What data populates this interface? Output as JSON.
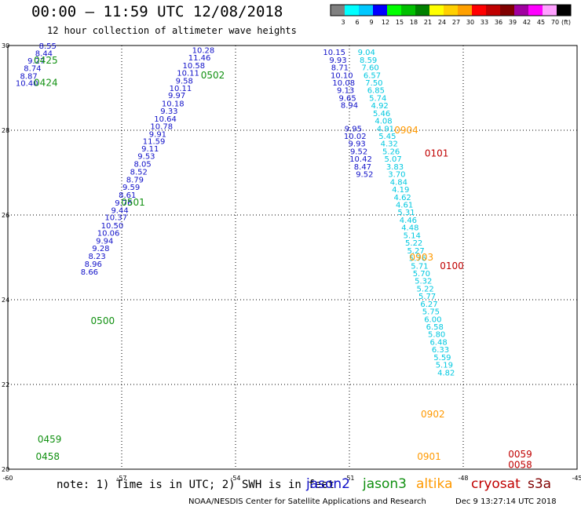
{
  "header": {
    "title": "00:00 — 11:59 UTC 12/08/2018",
    "subtitle": "12 hour collection of altimeter wave heights"
  },
  "colorbar": {
    "unit": "(ft)",
    "bins": [
      {
        "label": "3",
        "color": "#808080"
      },
      {
        "label": "6",
        "color": "#00ffff"
      },
      {
        "label": "9",
        "color": "#00c8ff"
      },
      {
        "label": "12",
        "color": "#0000ff"
      },
      {
        "label": "15",
        "color": "#00ff00"
      },
      {
        "label": "18",
        "color": "#00c000"
      },
      {
        "label": "21",
        "color": "#008000"
      },
      {
        "label": "24",
        "color": "#ffff00"
      },
      {
        "label": "27",
        "color": "#ffd000"
      },
      {
        "label": "30",
        "color": "#ffa000"
      },
      {
        "label": "33",
        "color": "#ff0000"
      },
      {
        "label": "36",
        "color": "#c00000"
      },
      {
        "label": "39",
        "color": "#800000"
      },
      {
        "label": "42",
        "color": "#a000a0"
      },
      {
        "label": "45",
        "color": "#ff00ff"
      },
      {
        "label": "70",
        "color": "#ffa0ff"
      },
      {
        "label": "",
        "color": "#000000"
      }
    ]
  },
  "footer": {
    "note": "note: 1) Time is in UTC; 2) SWH is in feet",
    "credit": "NOAA/NESDIS Center for Satellite Applications and Research",
    "generated": "Dec  9 13:27:14 UTC 2018"
  },
  "satellites": [
    {
      "name": "jason2",
      "color": "#1010c8"
    },
    {
      "name": "jason3",
      "color": "#109010"
    },
    {
      "name": "altika",
      "color": "#ff9900"
    },
    {
      "name": "cryosat",
      "color": "#c00000"
    },
    {
      "name": "s3a",
      "color": "#800000"
    }
  ],
  "chart_data": {
    "type": "scatter",
    "title": "00:00 — 11:59 UTC 12/08/2018",
    "subtitle": "12 hour collection of altimeter wave heights",
    "xlabel": "",
    "ylabel": "",
    "xlim": [
      -60,
      -45
    ],
    "ylim": [
      20,
      30
    ],
    "xticks": [
      "-60",
      "-57",
      "-54",
      "-51",
      "-48",
      "-45"
    ],
    "yticks": [
      "20",
      "22",
      "24",
      "26",
      "28",
      "30"
    ],
    "grid": true,
    "series": [
      {
        "name": "jason2",
        "color": "#1010c8",
        "points": [
          [
            -58.95,
            30.0,
            "8.55"
          ],
          [
            -59.05,
            29.82,
            "8.44"
          ],
          [
            -59.25,
            29.65,
            "9.27"
          ],
          [
            -59.35,
            29.47,
            "8.74"
          ],
          [
            -59.45,
            29.29,
            "8.87"
          ],
          [
            -59.5,
            29.12,
            "10.40"
          ],
          [
            -54.85,
            29.9,
            "10.28"
          ],
          [
            -54.95,
            29.72,
            "11.46"
          ],
          [
            -55.1,
            29.54,
            "10.58"
          ],
          [
            -55.25,
            29.36,
            "10.11"
          ],
          [
            -55.35,
            29.18,
            "9.58"
          ],
          [
            -55.45,
            29.0,
            "10.11"
          ],
          [
            -55.55,
            28.83,
            "9.97"
          ],
          [
            -55.65,
            28.64,
            "10.18"
          ],
          [
            -55.75,
            28.46,
            "9.33"
          ],
          [
            -55.85,
            28.28,
            "10.64"
          ],
          [
            -55.95,
            28.1,
            "10.78"
          ],
          [
            -56.05,
            27.92,
            "9.91"
          ],
          [
            -56.15,
            27.75,
            "11.59"
          ],
          [
            -56.25,
            27.57,
            "9.11"
          ],
          [
            -56.35,
            27.4,
            "9.53"
          ],
          [
            -56.45,
            27.21,
            "8.05"
          ],
          [
            -56.55,
            27.03,
            "8.52"
          ],
          [
            -56.65,
            26.84,
            "8.79"
          ],
          [
            -56.75,
            26.67,
            "9.59"
          ],
          [
            -56.85,
            26.48,
            "8.61"
          ],
          [
            -56.95,
            26.3,
            "9.76"
          ],
          [
            -57.05,
            26.12,
            "9.44"
          ],
          [
            -57.15,
            25.95,
            "10.37"
          ],
          [
            -57.25,
            25.76,
            "10.50"
          ],
          [
            -57.35,
            25.58,
            "10.06"
          ],
          [
            -57.45,
            25.4,
            "9.94"
          ],
          [
            -57.55,
            25.22,
            "9.28"
          ],
          [
            -57.65,
            25.04,
            "8.23"
          ],
          [
            -57.75,
            24.85,
            "8.96"
          ],
          [
            -57.85,
            24.67,
            "8.66"
          ],
          [
            -51.4,
            29.85,
            "10.15"
          ],
          [
            -51.3,
            29.67,
            "9.93"
          ],
          [
            -51.25,
            29.49,
            "8.71"
          ],
          [
            -51.2,
            29.31,
            "10.10"
          ],
          [
            -51.15,
            29.13,
            "10.08"
          ],
          [
            -51.1,
            28.95,
            "9.13"
          ],
          [
            -51.05,
            28.77,
            "9.65"
          ],
          [
            -51.0,
            28.6,
            "8.94"
          ],
          [
            -50.9,
            28.05,
            "9.95"
          ],
          [
            -50.85,
            27.87,
            "10.02"
          ],
          [
            -50.8,
            27.69,
            "9.93"
          ],
          [
            -50.75,
            27.51,
            "9.52"
          ],
          [
            -50.7,
            27.33,
            "10.42"
          ],
          [
            -50.65,
            27.15,
            "8.47"
          ],
          [
            -50.6,
            26.97,
            "9.52"
          ]
        ]
      },
      {
        "name": "jason3",
        "color": "#109010",
        "points": [
          [
            -59.0,
            29.65,
            "0425"
          ],
          [
            -59.0,
            29.12,
            "0424"
          ],
          [
            -54.6,
            29.3,
            "0502"
          ],
          [
            -56.7,
            26.3,
            "0501"
          ],
          [
            -57.5,
            23.5,
            "0500"
          ],
          [
            -58.9,
            20.7,
            "0459"
          ],
          [
            -58.95,
            20.3,
            "0458"
          ]
        ]
      },
      {
        "name": "altika",
        "color": "#ff9900",
        "points": [
          [
            -50.55,
            29.85,
            "9.04"
          ],
          [
            -50.5,
            29.67,
            "8.59"
          ],
          [
            -50.45,
            29.49,
            "7.60"
          ],
          [
            -50.4,
            29.31,
            "6.57"
          ],
          [
            -50.35,
            29.13,
            "7.50"
          ],
          [
            -50.3,
            28.95,
            "6.85"
          ],
          [
            -50.25,
            28.77,
            "5.74"
          ],
          [
            -50.2,
            28.59,
            "4.92"
          ],
          [
            -50.15,
            28.41,
            "5.46"
          ],
          [
            -50.1,
            28.23,
            "4.08"
          ],
          [
            -50.05,
            28.05,
            "4.91"
          ],
          [
            -50.0,
            27.87,
            "5.45"
          ],
          [
            -49.95,
            27.69,
            "4.32"
          ],
          [
            -49.9,
            27.51,
            "5.26"
          ],
          [
            -49.85,
            27.33,
            "5.07"
          ],
          [
            -49.8,
            27.15,
            "3.83"
          ],
          [
            -49.75,
            26.97,
            "3.70"
          ],
          [
            -49.7,
            26.79,
            "4.84"
          ],
          [
            -49.65,
            26.61,
            "4.19"
          ],
          [
            -49.6,
            26.43,
            "4.62"
          ],
          [
            -49.55,
            26.25,
            "4.61"
          ],
          [
            -49.5,
            26.07,
            "5.31"
          ],
          [
            -49.45,
            25.89,
            "4.46"
          ],
          [
            -49.4,
            25.71,
            "4.48"
          ],
          [
            -49.35,
            25.53,
            "5.14"
          ],
          [
            -49.3,
            25.35,
            "5.22"
          ],
          [
            -49.25,
            25.17,
            "5.27"
          ],
          [
            -49.2,
            24.99,
            "5.76"
          ],
          [
            -49.15,
            24.81,
            "5.71"
          ],
          [
            -49.1,
            24.63,
            "5.70"
          ],
          [
            -49.05,
            24.45,
            "5.32"
          ],
          [
            -49.0,
            24.27,
            "5.22"
          ],
          [
            -48.95,
            24.09,
            "5.77"
          ],
          [
            -48.9,
            23.91,
            "6.27"
          ],
          [
            -48.85,
            23.73,
            "5.75"
          ],
          [
            -48.8,
            23.55,
            "6.00"
          ],
          [
            -48.75,
            23.37,
            "6.58"
          ],
          [
            -48.7,
            23.19,
            "5.80"
          ],
          [
            -48.65,
            23.01,
            "6.48"
          ],
          [
            -48.6,
            22.83,
            "6.33"
          ],
          [
            -48.55,
            22.65,
            "5.59"
          ],
          [
            -48.5,
            22.47,
            "5.19"
          ],
          [
            -48.45,
            22.29,
            "4.82"
          ],
          [
            -49.5,
            28.0,
            "0904"
          ],
          [
            -49.1,
            25.0,
            "0903"
          ],
          [
            -48.8,
            21.3,
            "0902"
          ],
          [
            -48.9,
            20.3,
            "0901"
          ]
        ]
      },
      {
        "name": "cryosat",
        "color": "#c00000",
        "points": [
          [
            -48.3,
            24.8,
            "0100"
          ],
          [
            -48.7,
            27.45,
            "0101"
          ],
          [
            -46.5,
            20.35,
            "0059"
          ],
          [
            -46.5,
            20.1,
            "0058"
          ]
        ]
      }
    ]
  }
}
